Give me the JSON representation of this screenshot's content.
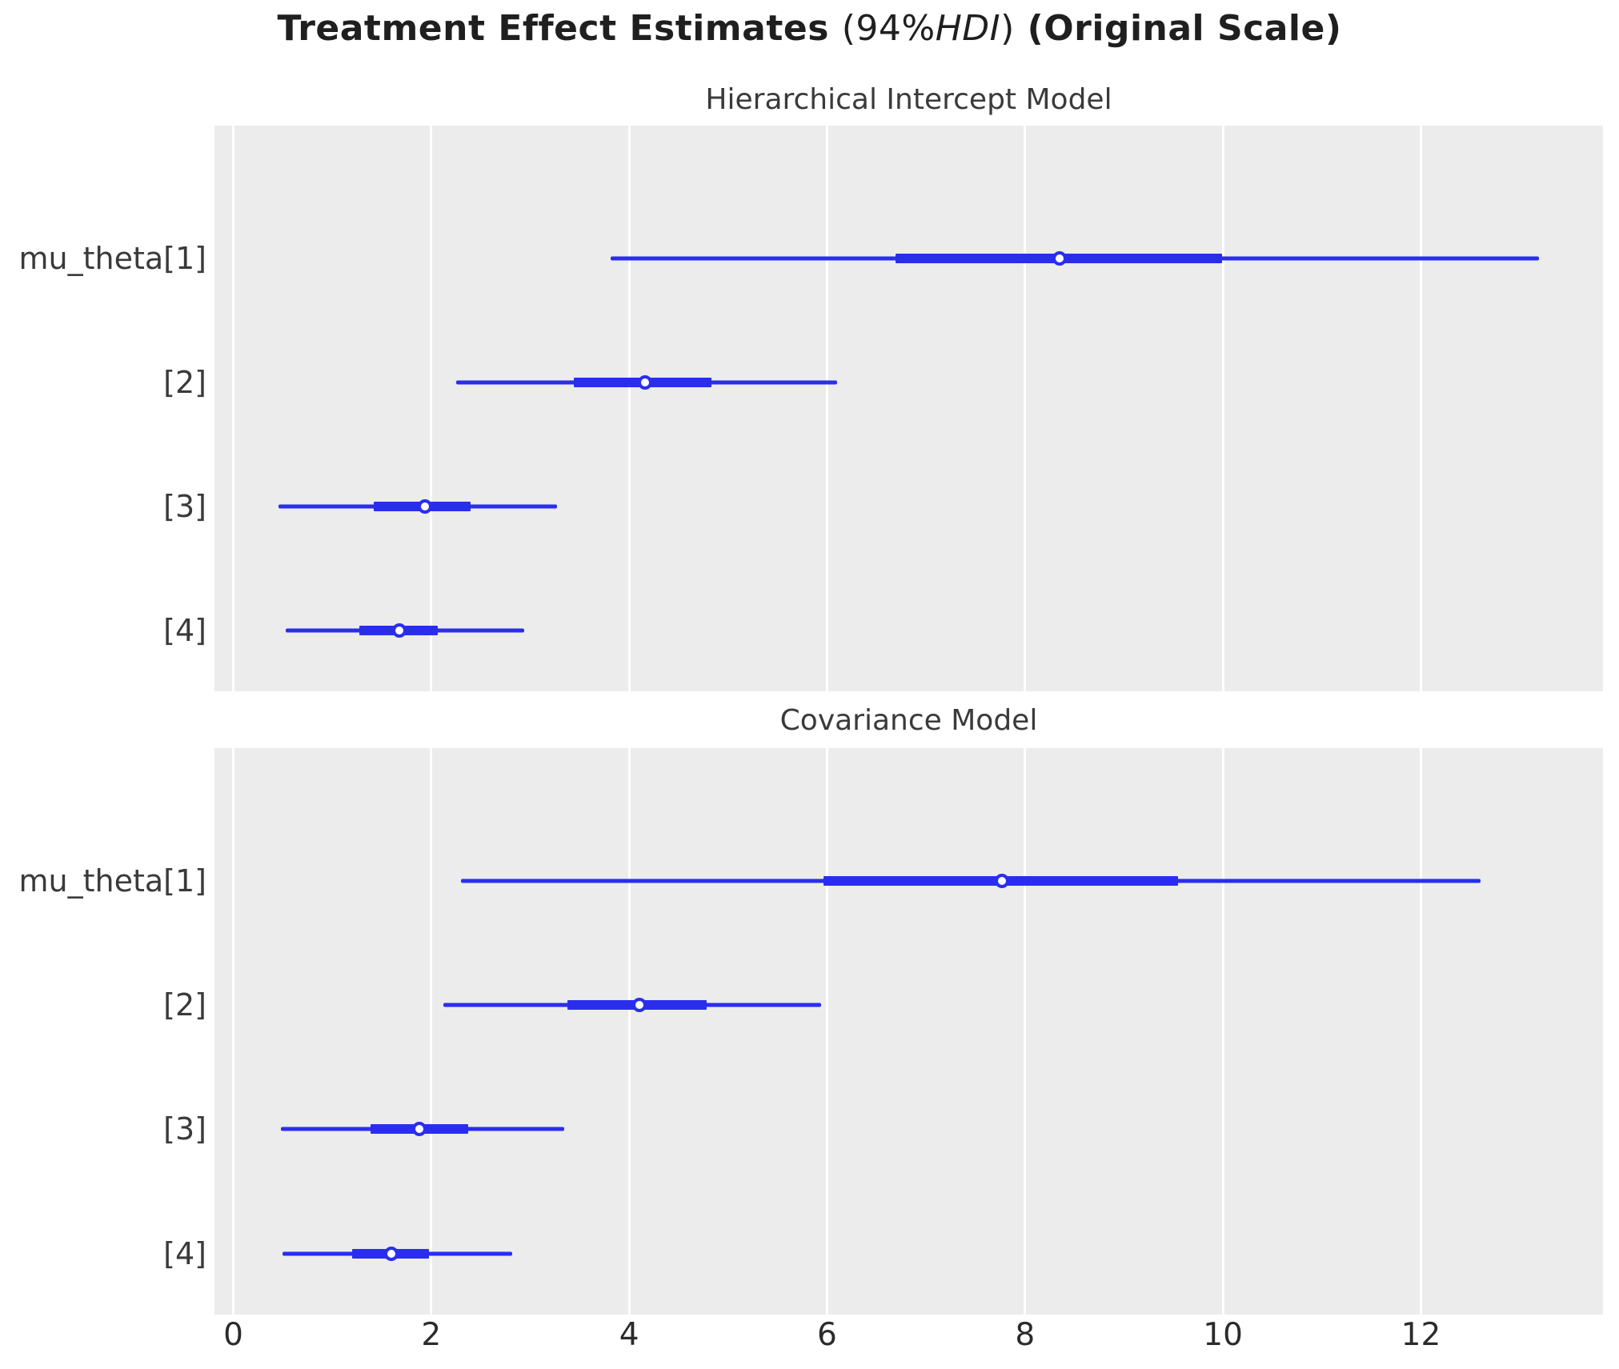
{
  "title": {
    "text_bold_1": "Treatment Effect Estimates",
    "text_math_open": "(94%",
    "text_math_italic": "HDI",
    "text_math_close": ")",
    "text_bold_2": "(Original Scale)"
  },
  "chart_data": {
    "type": "forest",
    "title": "Treatment Effect Estimates (94%HDI) (Original Scale)",
    "interval_label": "94% HDI",
    "xlabel": "",
    "ylabel": "",
    "xlim": [
      -0.19,
      13.84
    ],
    "xticks": [
      0,
      2,
      4,
      6,
      8,
      10,
      12
    ],
    "grid": "vertical-white-lines-on-gray",
    "legend": "none",
    "color": "#2a2eec",
    "plot_background": "#ececec",
    "row_fractions": [
      0.235,
      0.454,
      0.673,
      0.8925
    ],
    "panels": [
      {
        "title": "Hierarchical Intercept Model",
        "rows": [
          {
            "label": "mu_theta[1]",
            "hdi_lower": 3.81,
            "hdi_upper": 13.19,
            "q_lower": 6.69,
            "q_upper": 9.99,
            "median": 8.35
          },
          {
            "label": "[2]",
            "hdi_lower": 2.25,
            "hdi_upper": 6.1,
            "q_lower": 3.44,
            "q_upper": 4.83,
            "median": 4.16
          },
          {
            "label": "[3]",
            "hdi_lower": 0.46,
            "hdi_upper": 3.27,
            "q_lower": 1.42,
            "q_upper": 2.4,
            "median": 1.94
          },
          {
            "label": "[4]",
            "hdi_lower": 0.53,
            "hdi_upper": 2.94,
            "q_lower": 1.27,
            "q_upper": 2.07,
            "median": 1.68
          }
        ]
      },
      {
        "title": "Covariance Model",
        "rows": [
          {
            "label": "mu_theta[1]",
            "hdi_lower": 2.3,
            "hdi_upper": 12.6,
            "q_lower": 5.96,
            "q_upper": 9.55,
            "median": 7.77
          },
          {
            "label": "[2]",
            "hdi_lower": 2.12,
            "hdi_upper": 5.94,
            "q_lower": 3.38,
            "q_upper": 4.78,
            "median": 4.1
          },
          {
            "label": "[3]",
            "hdi_lower": 0.48,
            "hdi_upper": 3.34,
            "q_lower": 1.39,
            "q_upper": 2.37,
            "median": 1.88
          },
          {
            "label": "[4]",
            "hdi_lower": 0.5,
            "hdi_upper": 2.82,
            "q_lower": 1.2,
            "q_upper": 1.98,
            "median": 1.6
          }
        ]
      }
    ]
  }
}
